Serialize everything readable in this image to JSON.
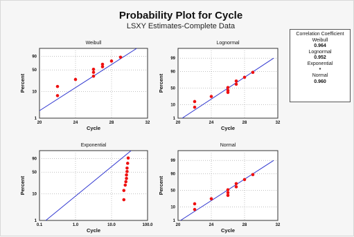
{
  "title": "Probability Plot for Cycle",
  "subtitle": "LSXY Estimates-Complete Data",
  "legend": {
    "heading": "Correlation Coefficient",
    "items": [
      {
        "name": "Weibull",
        "value": "0.964"
      },
      {
        "name": "Lognormal",
        "value": "0.952"
      },
      {
        "name": "Exponential",
        "value": "*"
      },
      {
        "name": "Normal",
        "value": "0.960"
      }
    ]
  },
  "colors": {
    "points": "#ee1111",
    "line": "#2f36d0",
    "frame": "#333333",
    "grid": "#9a9a9a"
  },
  "chart_data": [
    {
      "type": "scatter",
      "title": "Weibull",
      "xlabel": "Cycle",
      "ylabel": "Percent",
      "x_ticks": [
        "20",
        "24",
        "28",
        "32"
      ],
      "y_ticks": [
        "1",
        "10",
        "50",
        "90"
      ],
      "xlim": [
        20,
        32
      ],
      "grid": true,
      "series": [
        {
          "x": [
            22.0,
            22.0,
            24.0,
            26.0,
            26.0,
            26.0,
            27.0,
            27.0,
            28.0,
            29.0
          ],
          "y": [
            7,
            15,
            26,
            33,
            43,
            52,
            60,
            68,
            78,
            88
          ]
        }
      ],
      "fit_line": [
        {
          "x": 18.5,
          "y": 0.9
        },
        {
          "x": 30.8,
          "y": 99
        }
      ]
    },
    {
      "type": "scatter",
      "title": "Lognormal",
      "xlabel": "Cycle",
      "ylabel": "Percent",
      "x_ticks": [
        "20",
        "24",
        "28",
        "32"
      ],
      "y_ticks": [
        "1",
        "10",
        "50",
        "90",
        "99"
      ],
      "xlim": [
        20,
        32
      ],
      "grid": true,
      "series": [
        {
          "x": [
            22.0,
            22.0,
            24.0,
            26.0,
            26.0,
            26.0,
            27.0,
            27.0,
            28.0,
            29.0
          ],
          "y": [
            7,
            15,
            26,
            37,
            43,
            52,
            62,
            71,
            80,
            89
          ]
        }
      ],
      "fit_line": [
        {
          "x": 20.5,
          "y": 1
        },
        {
          "x": 31.5,
          "y": 99
        }
      ]
    },
    {
      "type": "scatter",
      "title": "Exponential",
      "xlabel": "Cycle",
      "ylabel": "Percent",
      "x_ticks": [
        "0.1",
        "1.0",
        "10.0",
        "100.0"
      ],
      "y_ticks": [
        "1",
        "10",
        "50",
        "90"
      ],
      "x_scale": "log",
      "grid": true,
      "series": [
        {
          "x": [
            22,
            22,
            24,
            25,
            26,
            26,
            27,
            27,
            28,
            29
          ],
          "y": [
            6,
            13,
            20,
            26,
            33,
            42,
            52,
            63,
            78,
            91
          ]
        }
      ],
      "fit_line": [
        {
          "x": 0.15,
          "y": 1
        },
        {
          "x": 35,
          "y": 99
        }
      ]
    },
    {
      "type": "scatter",
      "title": "Normal",
      "xlabel": "Cycle",
      "ylabel": "Percent",
      "x_ticks": [
        "20",
        "24",
        "28",
        "32"
      ],
      "y_ticks": [
        "1",
        "10",
        "50",
        "90",
        "99"
      ],
      "xlim": [
        20,
        32
      ],
      "grid": true,
      "series": [
        {
          "x": [
            22.0,
            22.0,
            24.0,
            26.0,
            26.0,
            26.0,
            27.0,
            27.0,
            28.0,
            29.0
          ],
          "y": [
            7,
            15,
            26,
            35,
            43,
            52,
            61,
            70,
            80,
            89
          ]
        }
      ],
      "fit_line": [
        {
          "x": 20.3,
          "y": 1
        },
        {
          "x": 31.5,
          "y": 99
        }
      ]
    }
  ]
}
